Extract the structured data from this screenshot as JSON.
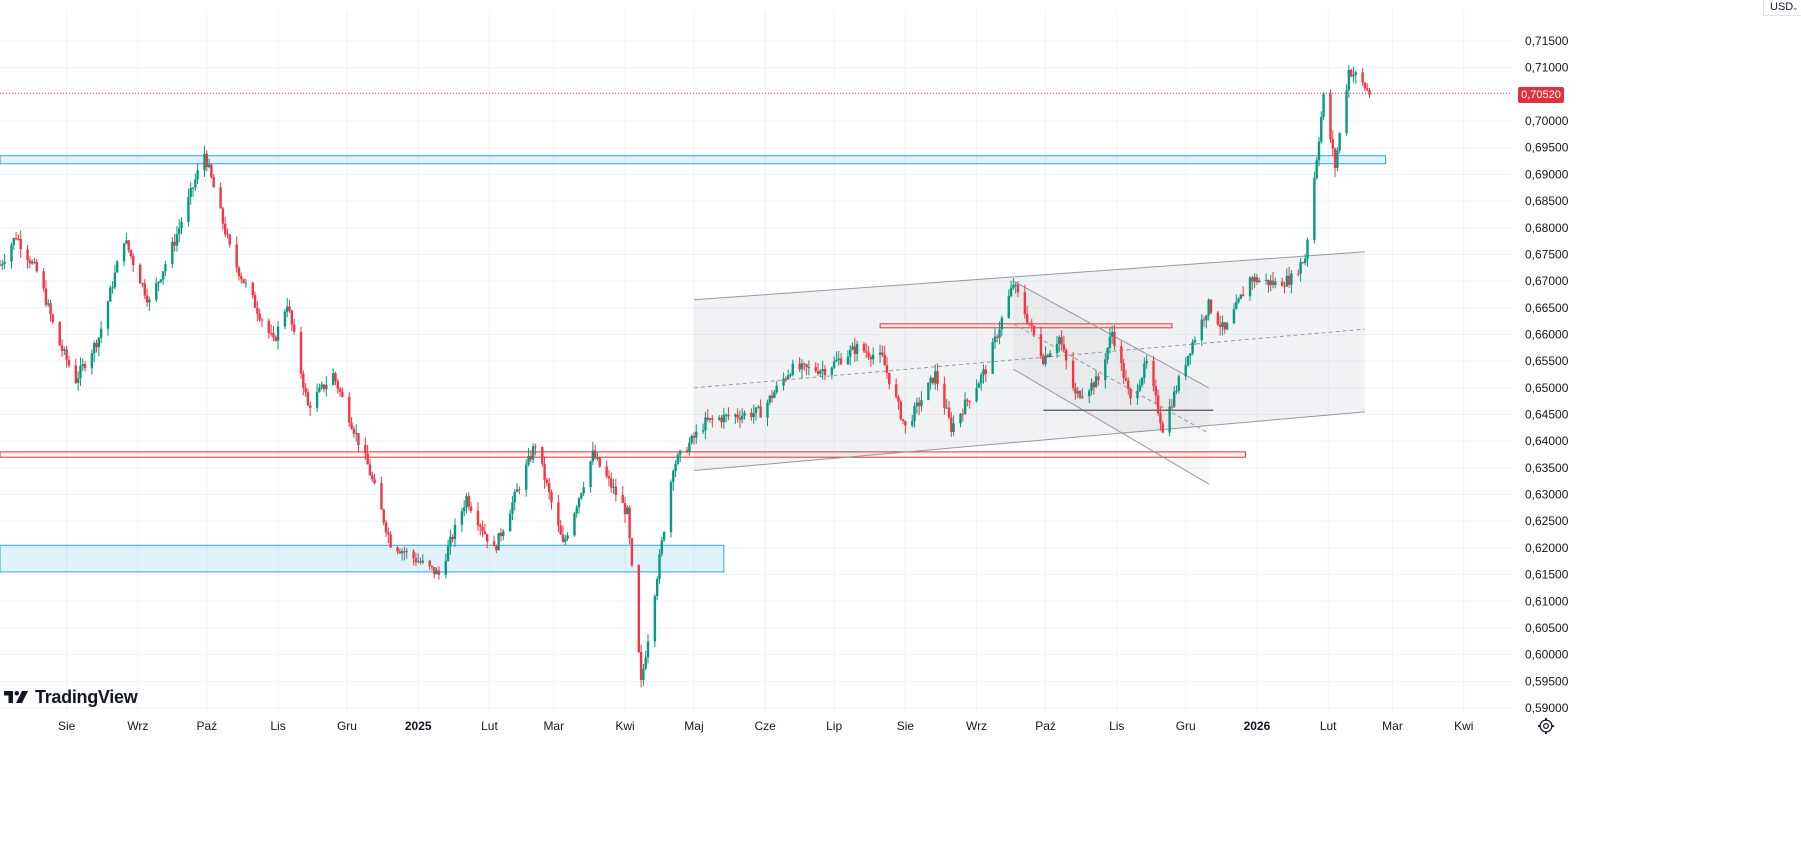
{
  "header": {
    "currency": "USD"
  },
  "brand": {
    "name": "TradingView"
  },
  "price": {
    "last": "0,70520"
  },
  "colors": {
    "up": "#089981",
    "down": "#f23645",
    "badge": "#e0313f",
    "zone_blue": "#2ca6dd",
    "zone_red": "#e0313f",
    "grid": "#f0f3fa"
  },
  "icons": {
    "settings": "settings-gear-icon",
    "dropdown": "chevron-down-icon"
  },
  "chart_data": {
    "type": "candlestick",
    "title": "",
    "ylim": [
      0.5875,
      0.7175
    ],
    "y_ticks": [
      "0,71500",
      "0,71000",
      "0,70000",
      "0,69500",
      "0,69000",
      "0,68500",
      "0,68000",
      "0,67500",
      "0,67000",
      "0,66500",
      "0,66000",
      "0,65500",
      "0,65000",
      "0,64500",
      "0,64000",
      "0,63500",
      "0,63000",
      "0,62500",
      "0,62000",
      "0,61500",
      "0,61000",
      "0,60500",
      "0,60000",
      "0,59500",
      "0,59000"
    ],
    "y_tick_values": [
      0.715,
      0.71,
      0.7,
      0.695,
      0.69,
      0.685,
      0.68,
      0.675,
      0.67,
      0.665,
      0.66,
      0.655,
      0.65,
      0.645,
      0.64,
      0.635,
      0.63,
      0.625,
      0.62,
      0.615,
      0.61,
      0.605,
      0.6,
      0.595,
      0.59
    ],
    "x_ticks": [
      {
        "label": "Sie",
        "date": "2024-08-01"
      },
      {
        "label": "Wrz",
        "date": "2024-09-01"
      },
      {
        "label": "Paź",
        "date": "2024-10-01"
      },
      {
        "label": "Lis",
        "date": "2024-11-01"
      },
      {
        "label": "Gru",
        "date": "2024-12-01"
      },
      {
        "label": "2025",
        "date": "2025-01-01",
        "bold": true
      },
      {
        "label": "Lut",
        "date": "2025-02-01"
      },
      {
        "label": "Mar",
        "date": "2025-03-01"
      },
      {
        "label": "Kwi",
        "date": "2025-04-01"
      },
      {
        "label": "Maj",
        "date": "2025-05-01"
      },
      {
        "label": "Cze",
        "date": "2025-06-01"
      },
      {
        "label": "Lip",
        "date": "2025-07-01"
      },
      {
        "label": "Sie",
        "date": "2025-08-01"
      },
      {
        "label": "Wrz",
        "date": "2025-09-01"
      },
      {
        "label": "Paź",
        "date": "2025-10-01"
      },
      {
        "label": "Lis",
        "date": "2025-11-01"
      },
      {
        "label": "Gru",
        "date": "2025-12-01"
      },
      {
        "label": "2026",
        "date": "2026-01-01",
        "bold": true
      },
      {
        "label": "Lut",
        "date": "2026-02-01"
      },
      {
        "label": "Mar",
        "date": "2026-03-01"
      },
      {
        "label": "Kwi",
        "date": "2026-04-01"
      }
    ],
    "x_range": [
      "2024-07-03",
      "2026-04-22"
    ],
    "last_price": 0.7052,
    "price_path": [
      {
        "date": "2024-07-03",
        "price": 0.673
      },
      {
        "date": "2024-07-10",
        "price": 0.6785
      },
      {
        "date": "2024-07-20",
        "price": 0.671
      },
      {
        "date": "2024-07-28",
        "price": 0.659
      },
      {
        "date": "2024-08-05",
        "price": 0.6515
      },
      {
        "date": "2024-08-15",
        "price": 0.6595
      },
      {
        "date": "2024-08-26",
        "price": 0.678
      },
      {
        "date": "2024-09-06",
        "price": 0.666
      },
      {
        "date": "2024-09-17",
        "price": 0.6775
      },
      {
        "date": "2024-09-30",
        "price": 0.694
      },
      {
        "date": "2024-10-12",
        "price": 0.6745
      },
      {
        "date": "2024-10-30",
        "price": 0.6585
      },
      {
        "date": "2024-11-05",
        "price": 0.666
      },
      {
        "date": "2024-11-14",
        "price": 0.6465
      },
      {
        "date": "2024-11-25",
        "price": 0.6525
      },
      {
        "date": "2024-12-10",
        "price": 0.6355
      },
      {
        "date": "2024-12-20",
        "price": 0.621
      },
      {
        "date": "2025-01-10",
        "price": 0.615
      },
      {
        "date": "2025-01-22",
        "price": 0.6295
      },
      {
        "date": "2025-02-03",
        "price": 0.6195
      },
      {
        "date": "2025-02-21",
        "price": 0.6395
      },
      {
        "date": "2025-03-05",
        "price": 0.6205
      },
      {
        "date": "2025-03-18",
        "price": 0.6375
      },
      {
        "date": "2025-04-02",
        "price": 0.6265
      },
      {
        "date": "2025-04-08",
        "price": 0.5945
      },
      {
        "date": "2025-04-22",
        "price": 0.6355
      },
      {
        "date": "2025-05-06",
        "price": 0.6435
      },
      {
        "date": "2025-05-14",
        "price": 0.6445
      },
      {
        "date": "2025-05-30",
        "price": 0.6455
      },
      {
        "date": "2025-06-12",
        "price": 0.6535
      },
      {
        "date": "2025-06-27",
        "price": 0.6535
      },
      {
        "date": "2025-07-11",
        "price": 0.6575
      },
      {
        "date": "2025-07-22",
        "price": 0.6555
      },
      {
        "date": "2025-08-01",
        "price": 0.6425
      },
      {
        "date": "2025-08-14",
        "price": 0.6525
      },
      {
        "date": "2025-08-21",
        "price": 0.6425
      },
      {
        "date": "2025-09-05",
        "price": 0.6535
      },
      {
        "date": "2025-09-17",
        "price": 0.6695
      },
      {
        "date": "2025-09-30",
        "price": 0.6555
      },
      {
        "date": "2025-10-07",
        "price": 0.6595
      },
      {
        "date": "2025-10-14",
        "price": 0.6485
      },
      {
        "date": "2025-10-24",
        "price": 0.6515
      },
      {
        "date": "2025-10-30",
        "price": 0.6605
      },
      {
        "date": "2025-11-07",
        "price": 0.6475
      },
      {
        "date": "2025-11-14",
        "price": 0.6545
      },
      {
        "date": "2025-11-21",
        ".price": 0.6425,
        "price": 0.6425
      },
      {
        "date": "2025-12-03",
        "price": 0.6575
      },
      {
        "date": "2025-12-11",
        "price": 0.6655
      },
      {
        "date": "2025-12-18",
        "price": 0.6605
      },
      {
        "date": "2025-12-29",
        "price": 0.6705
      },
      {
        "date": "2026-01-09",
        "price": 0.6695
      },
      {
        "date": "2026-01-16",
        "price": 0.6705
      },
      {
        "date": "2026-01-22",
        "price": 0.6745
      },
      {
        "date": "2026-01-26",
        "price": 0.6895
      },
      {
        "date": "2026-01-30",
        "price": 0.7045
      },
      {
        "date": "2026-02-04",
        "price": 0.6915
      },
      {
        "date": "2026-02-10",
        "price": 0.7095
      },
      {
        "date": "2026-02-13",
        "price": 0.7085
      },
      {
        "date": "2026-02-19",
        "price": 0.7052
      }
    ],
    "annotations": {
      "zones": [
        {
          "name": "resistance-zone-top",
          "color": "blue",
          "x_start": "2024-07-03",
          "x_end": "2026-02-26",
          "y_low": 0.692,
          "y_high": 0.6935
        },
        {
          "name": "support-zone-mid",
          "color": "red",
          "x_start": "2024-07-03",
          "x_end": "2025-12-27",
          "y_low": 0.637,
          "y_high": 0.638
        },
        {
          "name": "support-zone-low",
          "color": "blue",
          "x_start": "2024-07-03",
          "x_end": "2025-05-14",
          "y_low": 0.6155,
          "y_high": 0.6205
        },
        {
          "name": "range-box",
          "color": "red",
          "x_start": "2025-07-21",
          "x_end": "2025-11-25",
          "y_low": 0.6615,
          "y_high": 0.662
        }
      ],
      "channel": {
        "x_start": "2025-05-01",
        "x_end": "2026-02-17",
        "upper": [
          0.6665,
          0.6755
        ],
        "lower": [
          0.6345,
          0.6455
        ],
        "mid": [
          0.65,
          0.661
        ]
      },
      "descending_channel": {
        "x_start": "2025-09-17",
        "x_end": "2025-12-11",
        "upper": [
          0.67,
          0.65
        ],
        "lower": [
          0.6535,
          0.632
        ],
        "mid": [
          0.662,
          0.6415
        ]
      },
      "hlines": [
        {
          "x_start": "2025-09-30",
          "x_end": "2025-12-13",
          "y": 0.6458
        }
      ],
      "last_price_line": 0.7052
    }
  }
}
